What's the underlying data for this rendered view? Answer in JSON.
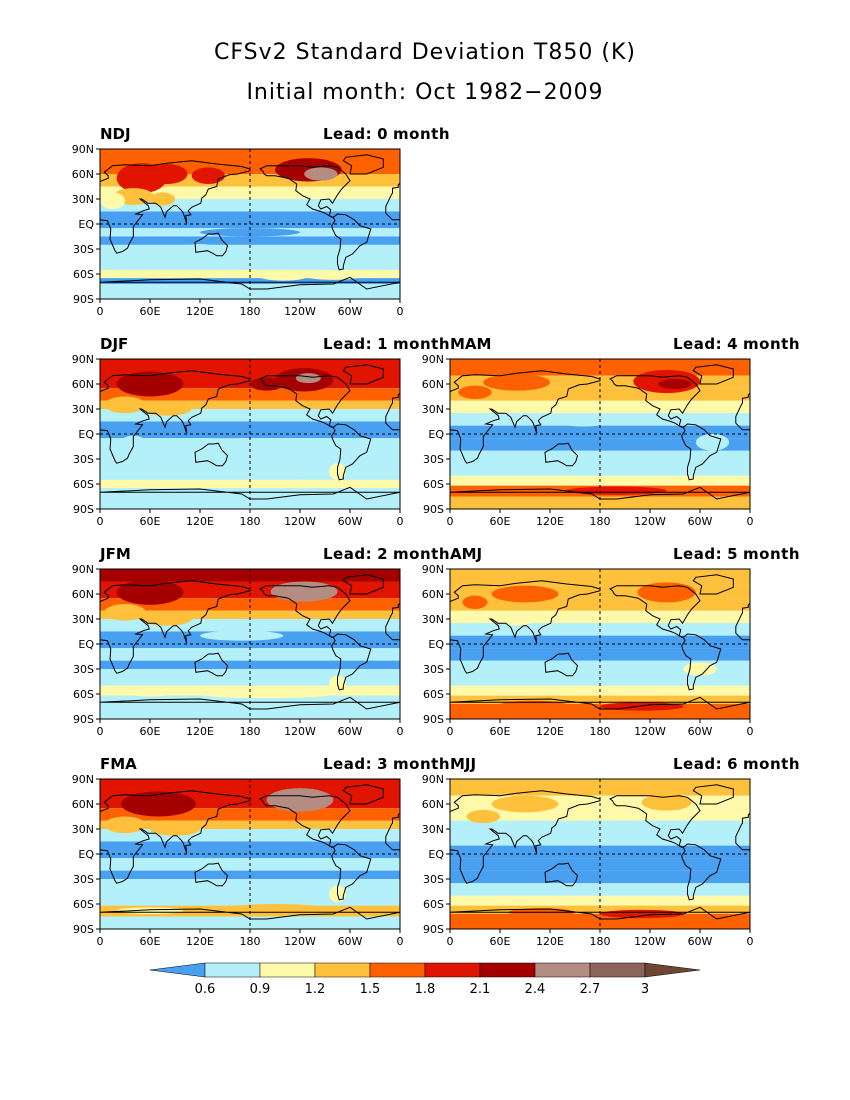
{
  "title": "CFSv2 Standard Deviation T850 (K)",
  "subtitle": "Initial month: Oct 1982−2009",
  "lead_word": "Lead:",
  "month_word": "month",
  "lat_labels": [
    "90N",
    "60N",
    "30N",
    "EQ",
    "30S",
    "60S",
    "90S"
  ],
  "lon_labels": [
    "0",
    "60E",
    "120E",
    "180",
    "120W",
    "60W",
    "0"
  ],
  "panels": [
    {
      "season": "NDJ",
      "lead": "0"
    },
    {
      "season": "DJF",
      "lead": "1"
    },
    {
      "season": "JFM",
      "lead": "2"
    },
    {
      "season": "FMA",
      "lead": "3"
    },
    {
      "season": "MAM",
      "lead": "4"
    },
    {
      "season": "AMJ",
      "lead": "5"
    },
    {
      "season": "MJJ",
      "lead": "6"
    }
  ],
  "colorbar": {
    "levels": [
      "0.6",
      "0.9",
      "1.2",
      "1.5",
      "1.8",
      "2.1",
      "2.4",
      "2.7",
      "3"
    ],
    "colors": [
      "#4aa0f0",
      "#b4f0fa",
      "#fffaaa",
      "#ffc03c",
      "#ff6000",
      "#e11400",
      "#a50000",
      "#b48c82",
      "#8c645a",
      "#6e4632"
    ]
  }
}
